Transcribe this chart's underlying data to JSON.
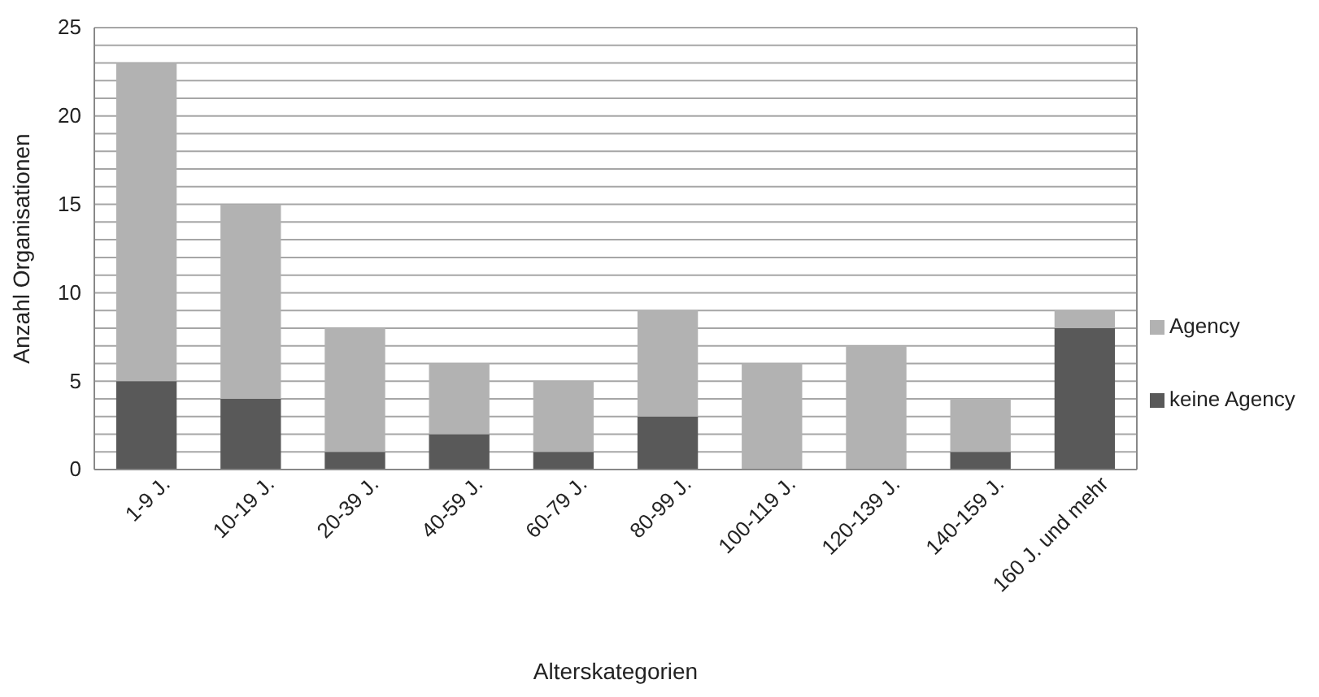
{
  "chart_data": {
    "type": "bar",
    "stacked": true,
    "xlabel": "Alterskategorien",
    "ylabel": "Anzahl Organisationen",
    "categories": [
      "1-9 J.",
      "10-19 J.",
      "20-39 J.",
      "40-59 J.",
      "60-79 J.",
      "80-99 J.",
      "100-119 J.",
      "120-139 J.",
      "140-159 J.",
      "160 J. und mehr"
    ],
    "series": [
      {
        "name": "keine Agency",
        "color": "#595959",
        "values": [
          5,
          4,
          1,
          2,
          1,
          3,
          0,
          0,
          1,
          8
        ]
      },
      {
        "name": "Agency",
        "color": "#b2b2b2",
        "values": [
          18,
          11,
          7,
          4,
          4,
          6,
          6,
          7,
          3,
          1
        ]
      }
    ],
    "ylim": [
      0,
      25
    ],
    "yticks": [
      0,
      {
        "value": 1,
        "label": null
      },
      {
        "value": 2,
        "label": null
      },
      {
        "value": 3,
        "label": null
      },
      {
        "value": 4,
        "label": null
      },
      5,
      {
        "value": 6,
        "label": null
      },
      {
        "value": 7,
        "label": null
      },
      {
        "value": 8,
        "label": null
      },
      {
        "value": 9,
        "label": null
      },
      10,
      {
        "value": 11,
        "label": null
      },
      {
        "value": 12,
        "label": null
      },
      {
        "value": 13,
        "label": null
      },
      {
        "value": 14,
        "label": null
      },
      15,
      {
        "value": 16,
        "label": null
      },
      {
        "value": 17,
        "label": null
      },
      {
        "value": 18,
        "label": null
      },
      {
        "value": 19,
        "label": null
      },
      20,
      {
        "value": 21,
        "label": null
      },
      {
        "value": 22,
        "label": null
      },
      {
        "value": 23,
        "label": null
      },
      {
        "value": 24,
        "label": null
      },
      25
    ],
    "grid": "y",
    "legend": "right"
  }
}
